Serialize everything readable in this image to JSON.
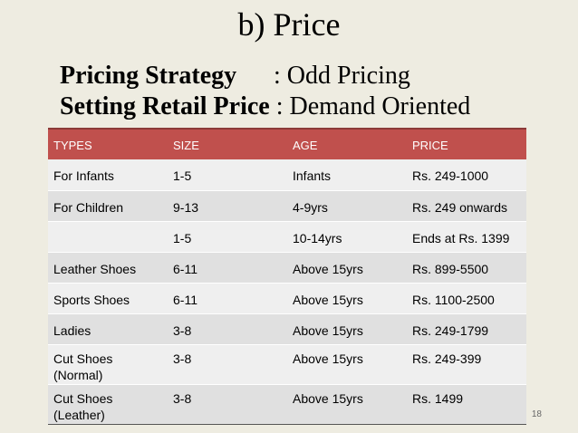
{
  "title": "b) Price",
  "pricing_strategy": {
    "label": "Pricing Strategy",
    "value": ": Odd Pricing"
  },
  "retail_price": {
    "label": "Setting Retail Price",
    "value": ": Demand Oriented"
  },
  "table": {
    "headers": [
      "TYPES",
      "SIZE",
      "AGE",
      "PRICE"
    ],
    "rows": [
      [
        "For Infants",
        "1-5",
        "Infants",
        "Rs. 249-1000"
      ],
      [
        "For Children",
        "9-13",
        "4-9yrs",
        "Rs. 249 onwards"
      ],
      [
        "",
        "1-5",
        "10-14yrs",
        "Ends at Rs. 1399"
      ],
      [
        "Leather Shoes",
        "6-11",
        "Above 15yrs",
        "Rs. 899-5500"
      ],
      [
        "Sports Shoes",
        "6-11",
        "Above 15yrs",
        "Rs. 1100-2500"
      ],
      [
        "Ladies",
        "3-8",
        "Above 15yrs",
        "Rs. 249-1799"
      ],
      [
        "Cut Shoes\n(Normal)",
        "3-8",
        "Above 15yrs",
        "Rs. 249-399"
      ],
      [
        "Cut Shoes\n(Leather)",
        "3-8",
        "Above 15yrs",
        "Rs. 1499"
      ]
    ]
  },
  "page_number": "18"
}
